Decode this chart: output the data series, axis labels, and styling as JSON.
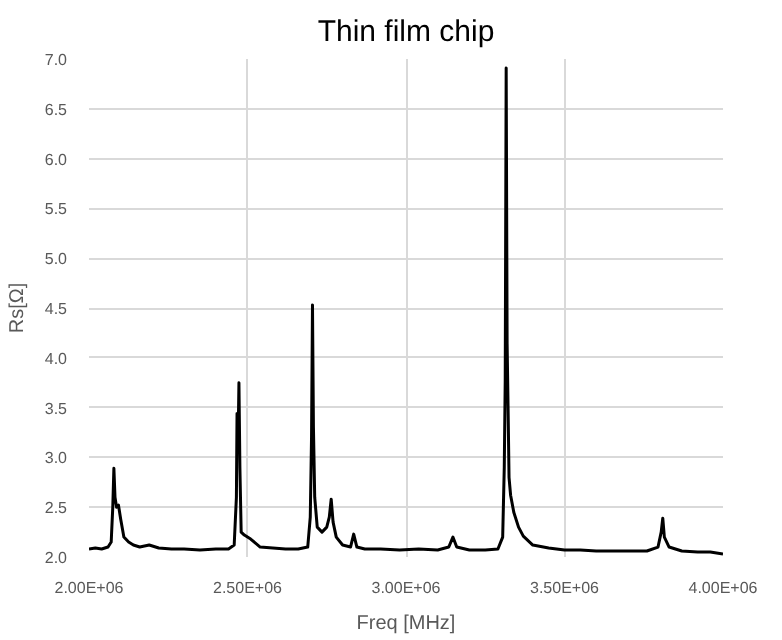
{
  "chart_data": {
    "type": "line",
    "title": "Thin film chip",
    "xlabel": "Freq [MHz]",
    "ylabel": "Rs[Ω]",
    "xlim": [
      2000000,
      4000000
    ],
    "xticks": [
      {
        "value": 2000000,
        "label": "2.00E+06"
      },
      {
        "value": 2500000,
        "label": "2.50E+06"
      },
      {
        "value": 3000000,
        "label": "3.00E+06"
      },
      {
        "value": 3500000,
        "label": "3.50E+06"
      },
      {
        "value": 4000000,
        "label": "4.00E+06"
      }
    ],
    "ylim": [
      2.0,
      7.0
    ],
    "yticks": [
      {
        "value": 2.0,
        "label": "2.0"
      },
      {
        "value": 2.5,
        "label": "2.5"
      },
      {
        "value": 3.0,
        "label": "3.0"
      },
      {
        "value": 3.5,
        "label": "3.5"
      },
      {
        "value": 4.0,
        "label": "4.0"
      },
      {
        "value": 4.5,
        "label": "4.5"
      },
      {
        "value": 5.0,
        "label": "5.0"
      },
      {
        "value": 5.5,
        "label": "5.5"
      },
      {
        "value": 6.0,
        "label": "6.0"
      },
      {
        "value": 6.5,
        "label": "6.5"
      },
      {
        "value": 7.0,
        "label": "7.0"
      }
    ],
    "grid": true,
    "marker": "none",
    "line_style": "solid",
    "series": [
      {
        "color": "#000000",
        "x": [
          2000000,
          2020000,
          2040000,
          2060000,
          2070000,
          2075000,
          2078500,
          2082000,
          2087000,
          2093000,
          2100000,
          2110000,
          2125000,
          2140000,
          2160000,
          2190000,
          2220000,
          2260000,
          2300000,
          2350000,
          2400000,
          2440000,
          2458000,
          2465000,
          2467000,
          2470000,
          2473000,
          2476000,
          2480000,
          2490000,
          2510000,
          2540000,
          2580000,
          2620000,
          2660000,
          2690000,
          2698000,
          2702000,
          2705000,
          2708000,
          2712000,
          2720000,
          2735000,
          2750000,
          2758000,
          2764000,
          2770000,
          2780000,
          2800000,
          2825000,
          2835000,
          2845000,
          2870000,
          2920000,
          2980000,
          3040000,
          3100000,
          3135000,
          3148000,
          3160000,
          3200000,
          3250000,
          3290000,
          3305000,
          3310000,
          3313000,
          3316000,
          3319000,
          3322000,
          3325000,
          3330000,
          3340000,
          3355000,
          3370000,
          3400000,
          3450000,
          3500000,
          3550000,
          3600000,
          3650000,
          3700000,
          3760000,
          3795000,
          3805000,
          3810000,
          3815000,
          3830000,
          3870000,
          3920000,
          3960000,
          4000000
        ],
        "values": [
          2.08,
          2.09,
          2.08,
          2.1,
          2.15,
          2.5,
          2.89,
          2.6,
          2.5,
          2.52,
          2.38,
          2.2,
          2.15,
          2.12,
          2.1,
          2.12,
          2.09,
          2.08,
          2.08,
          2.07,
          2.08,
          2.08,
          2.12,
          2.6,
          3.44,
          3.1,
          3.75,
          2.9,
          2.25,
          2.22,
          2.18,
          2.1,
          2.09,
          2.08,
          2.08,
          2.1,
          2.4,
          3.2,
          4.53,
          3.3,
          2.6,
          2.3,
          2.25,
          2.3,
          2.4,
          2.58,
          2.35,
          2.2,
          2.12,
          2.1,
          2.23,
          2.1,
          2.08,
          2.08,
          2.07,
          2.08,
          2.07,
          2.1,
          2.2,
          2.1,
          2.07,
          2.07,
          2.08,
          2.2,
          2.9,
          3.77,
          6.91,
          4.14,
          3.5,
          2.8,
          2.62,
          2.45,
          2.3,
          2.21,
          2.12,
          2.09,
          2.07,
          2.07,
          2.06,
          2.06,
          2.06,
          2.06,
          2.1,
          2.25,
          2.39,
          2.2,
          2.1,
          2.06,
          2.05,
          2.05,
          2.03
        ]
      }
    ]
  }
}
